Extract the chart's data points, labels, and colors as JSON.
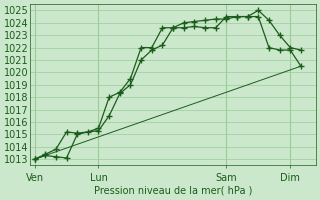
{
  "xlabel": "Pression niveau de la mer( hPa )",
  "ylim": [
    1012.5,
    1025.5
  ],
  "xlim": [
    -0.2,
    13.2
  ],
  "yticks": [
    1013,
    1014,
    1015,
    1016,
    1017,
    1018,
    1019,
    1020,
    1021,
    1022,
    1023,
    1024,
    1025
  ],
  "bg_color": "#cce8cc",
  "grid_color": "#99cc99",
  "line_color": "#1a5c1a",
  "xtick_labels": [
    "Ven",
    "Lun",
    "Sam",
    "Dim"
  ],
  "xtick_positions": [
    0,
    3,
    9,
    12
  ],
  "series1_x": [
    0,
    0.5,
    1,
    1.5,
    2,
    3,
    3.5,
    4,
    4.5,
    5,
    5.5,
    6,
    6.5,
    7,
    7.5,
    8,
    8.5,
    9,
    9.5,
    10,
    10.5,
    11,
    11.5,
    12,
    12.5
  ],
  "series1_y": [
    1013.0,
    1013.4,
    1013.8,
    1015.2,
    1015.1,
    1015.3,
    1016.5,
    1018.3,
    1019.0,
    1021.0,
    1021.8,
    1022.2,
    1023.6,
    1023.6,
    1023.7,
    1023.6,
    1023.6,
    1024.5,
    1024.5,
    1024.5,
    1025.0,
    1024.2,
    1023.0,
    1022.0,
    1021.8
  ],
  "series2_x": [
    0,
    0.5,
    1,
    1.5,
    2,
    2.5,
    3,
    3.5,
    4,
    4.5,
    5,
    5.5,
    6,
    6.5,
    7,
    7.5,
    8,
    8.5,
    9,
    9.5,
    10,
    10.5,
    11,
    11.5,
    12,
    12.5
  ],
  "series2_y": [
    1013.0,
    1013.3,
    1013.2,
    1013.1,
    1015.0,
    1015.2,
    1015.5,
    1018.0,
    1018.4,
    1019.5,
    1022.0,
    1022.0,
    1023.6,
    1023.6,
    1024.0,
    1024.1,
    1024.2,
    1024.3,
    1024.3,
    1024.5,
    1024.5,
    1024.5,
    1022.0,
    1021.8,
    1021.8,
    1020.5
  ],
  "series3_x": [
    0,
    12.5
  ],
  "series3_y": [
    1013.0,
    1020.5
  ]
}
